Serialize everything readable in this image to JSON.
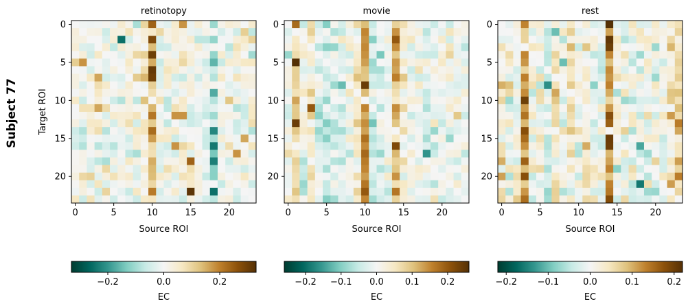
{
  "figure": {
    "row_label": "Subject 77"
  },
  "chart_data": [
    {
      "type": "heatmap",
      "title": "retinotopy",
      "xlabel": "Source ROI",
      "ylabel": "Target ROI",
      "x_ticks": [
        0,
        5,
        10,
        15,
        20
      ],
      "y_ticks": [
        0,
        5,
        10,
        15,
        20
      ],
      "colorbar": {
        "label": "EC",
        "range": [
          -0.33,
          0.33
        ],
        "ticks": [
          -0.2,
          0.0,
          0.2
        ],
        "tick_labels": [
          "−0.2",
          "0.0",
          "0.2"
        ]
      },
      "colormap": [
        "#003c30",
        "#01665e",
        "#35978f",
        "#80cdc1",
        "#c7eae5",
        "#f5f5f5",
        "#f6e8c3",
        "#dfc27d",
        "#bf812d",
        "#8c510a",
        "#543005"
      ],
      "size": 24,
      "vmax": 0.33,
      "seed": 77,
      "noise": 0.07,
      "col_bias": {
        "3": 0.02,
        "9": 0.04,
        "10": 0.12,
        "14": 0.03,
        "17": -0.02,
        "18": -0.07
      },
      "row_bias": {},
      "cells": [
        {
          "r": 4,
          "c": 10,
          "v": 0.3
        },
        {
          "r": 6,
          "c": 10,
          "v": 0.31
        },
        {
          "r": 7,
          "c": 10,
          "v": 0.3
        },
        {
          "r": 2,
          "c": 10,
          "v": 0.28
        },
        {
          "r": 0,
          "c": 10,
          "v": 0.24
        },
        {
          "r": 0,
          "c": 14,
          "v": 0.18
        },
        {
          "r": 22,
          "c": 15,
          "v": 0.32
        },
        {
          "r": 18,
          "c": 15,
          "v": 0.24
        },
        {
          "r": 2,
          "c": 6,
          "v": -0.25
        },
        {
          "r": 14,
          "c": 18,
          "v": -0.22
        },
        {
          "r": 16,
          "c": 18,
          "v": -0.24
        },
        {
          "r": 22,
          "c": 18,
          "v": -0.25
        },
        {
          "r": 18,
          "c": 18,
          "v": -0.23
        },
        {
          "r": 5,
          "c": 1,
          "v": 0.18
        },
        {
          "r": 7,
          "c": 3,
          "v": 0.16
        },
        {
          "r": 11,
          "c": 3,
          "v": 0.16
        },
        {
          "r": 12,
          "c": 13,
          "v": 0.18
        },
        {
          "r": 12,
          "c": 14,
          "v": 0.18
        },
        {
          "r": 16,
          "c": 13,
          "v": 0.18
        },
        {
          "r": 17,
          "c": 21,
          "v": 0.18
        },
        {
          "r": 15,
          "c": 22,
          "v": 0.16
        }
      ]
    },
    {
      "type": "heatmap",
      "title": "movie",
      "xlabel": "Source ROI",
      "ylabel": "",
      "x_ticks": [
        0,
        5,
        10,
        15,
        20
      ],
      "y_ticks": [
        0,
        5,
        10,
        15,
        20
      ],
      "colorbar": {
        "label": "EC",
        "range": [
          -0.26,
          0.26
        ],
        "ticks": [
          -0.2,
          -0.1,
          0.0,
          0.1,
          0.2
        ],
        "tick_labels": [
          "−0.2",
          "−0.1",
          "0.0",
          "0.1",
          "0.2"
        ]
      },
      "colormap": [
        "#003c30",
        "#01665e",
        "#35978f",
        "#80cdc1",
        "#c7eae5",
        "#f5f5f5",
        "#f6e8c3",
        "#dfc27d",
        "#bf812d",
        "#8c510a",
        "#543005"
      ],
      "size": 24,
      "vmax": 0.26,
      "seed": 1234,
      "noise": 0.05,
      "col_bias": {
        "1": 0.08,
        "3": 0.04,
        "4": -0.03,
        "5": -0.04,
        "6": -0.03,
        "7": -0.02,
        "9": 0.05,
        "10": 0.14,
        "11": -0.04,
        "12": -0.02,
        "14": 0.11,
        "15": 0.03,
        "18": -0.03
      },
      "row_bias": {},
      "cells": [
        {
          "r": 5,
          "c": 1,
          "v": 0.26
        },
        {
          "r": 13,
          "c": 1,
          "v": 0.24
        },
        {
          "r": 0,
          "c": 1,
          "v": 0.18
        },
        {
          "r": 8,
          "c": 10,
          "v": 0.24
        },
        {
          "r": 22,
          "c": 10,
          "v": 0.2
        },
        {
          "r": 16,
          "c": 14,
          "v": 0.22
        },
        {
          "r": 2,
          "c": 14,
          "v": 0.2
        },
        {
          "r": 11,
          "c": 3,
          "v": 0.2
        },
        {
          "r": 17,
          "c": 18,
          "v": -0.16
        },
        {
          "r": 8,
          "c": 7,
          "v": -0.12
        },
        {
          "r": 0,
          "c": 5,
          "v": -0.1
        }
      ]
    },
    {
      "type": "heatmap",
      "title": "rest",
      "xlabel": "Source ROI",
      "ylabel": "",
      "x_ticks": [
        0,
        5,
        10,
        15,
        20
      ],
      "y_ticks": [
        0,
        5,
        10,
        15,
        20
      ],
      "colorbar": {
        "label": "EC",
        "range": [
          -0.22,
          0.22
        ],
        "ticks": [
          -0.2,
          -0.1,
          0.0,
          0.1,
          0.2
        ],
        "tick_labels": [
          "−0.2",
          "−0.1",
          "0.0",
          "0.1",
          "0.2"
        ]
      },
      "colormap": [
        "#003c30",
        "#01665e",
        "#35978f",
        "#80cdc1",
        "#c7eae5",
        "#f5f5f5",
        "#f6e8c3",
        "#dfc27d",
        "#bf812d",
        "#8c510a",
        "#543005"
      ],
      "size": 24,
      "vmax": 0.22,
      "seed": 4321,
      "noise": 0.05,
      "col_bias": {
        "0": 0.03,
        "3": 0.1,
        "6": -0.03,
        "7": 0.05,
        "9": 0.04,
        "11": 0.03,
        "14": 0.13,
        "18": -0.03,
        "22": 0.04,
        "23": 0.06
      },
      "row_bias": {},
      "cells": [
        {
          "r": 0,
          "c": 14,
          "v": 0.22
        },
        {
          "r": 2,
          "c": 14,
          "v": 0.21
        },
        {
          "r": 3,
          "c": 14,
          "v": 0.2
        },
        {
          "r": 10,
          "c": 3,
          "v": 0.2
        },
        {
          "r": 14,
          "c": 3,
          "v": 0.18
        },
        {
          "r": 16,
          "c": 14,
          "v": 0.2
        },
        {
          "r": 12,
          "c": 14,
          "v": 0.18
        },
        {
          "r": 8,
          "c": 6,
          "v": -0.14
        },
        {
          "r": 21,
          "c": 18,
          "v": -0.16
        },
        {
          "r": 16,
          "c": 18,
          "v": -0.12
        },
        {
          "r": 1,
          "c": 7,
          "v": -0.1
        },
        {
          "r": 5,
          "c": 8,
          "v": -0.1
        }
      ]
    }
  ]
}
